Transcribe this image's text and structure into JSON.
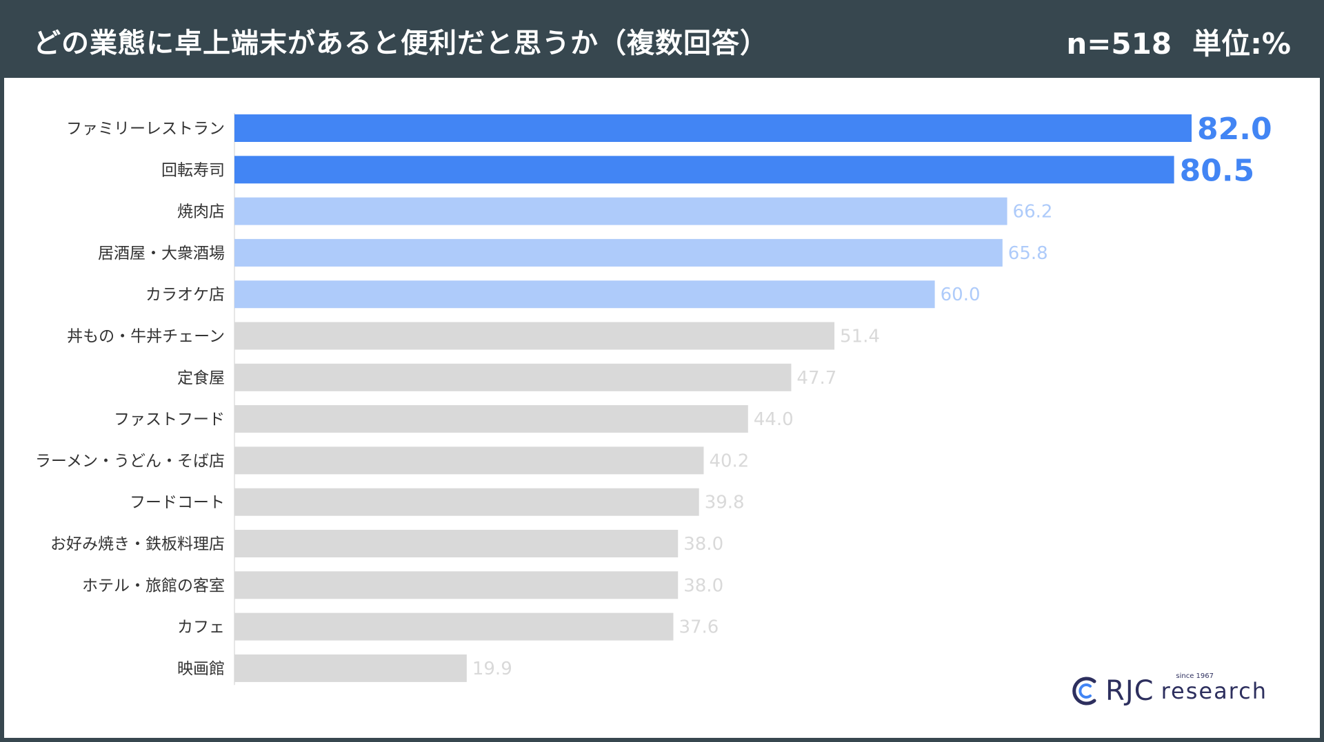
{
  "header": {
    "title": "どの業態に卓上端末があると便利だと思うか（複数回答）",
    "sample": "n=518",
    "unit": "単位:%"
  },
  "colors": {
    "header_bg": "#37474f",
    "highlight": "#4285f4",
    "secondary": "#aecbfa",
    "other": "#d9d9d9"
  },
  "chart_data": {
    "type": "bar",
    "orientation": "horizontal",
    "categories": [
      "ファミリーレストラン",
      "回転寿司",
      "焼肉店",
      "居酒屋・大衆酒場",
      "カラオケ店",
      "丼もの・牛丼チェーン",
      "定食屋",
      "ファストフード",
      "ラーメン・うどん・そば店",
      "フードコート",
      "お好み焼き・鉄板料理店",
      "ホテル・旅館の客室",
      "カフェ",
      "映画館"
    ],
    "values": [
      82.0,
      80.5,
      66.2,
      65.8,
      60.0,
      51.4,
      47.7,
      44.0,
      40.2,
      39.8,
      38.0,
      38.0,
      37.6,
      19.9
    ],
    "value_labels": [
      "82.0",
      "80.5",
      "66.2",
      "65.8",
      "60.0",
      "51.4",
      "47.7",
      "44.0",
      "40.2",
      "39.8",
      "38.0",
      "38.0",
      "37.6",
      "19.9"
    ],
    "tiers": [
      "top",
      "top",
      "second",
      "second",
      "second",
      "other",
      "other",
      "other",
      "other",
      "other",
      "other",
      "other",
      "other",
      "other"
    ],
    "xlim": [
      0,
      100
    ],
    "grid": false,
    "legend": "none"
  },
  "logo": {
    "brand": "RJC",
    "name": "research",
    "since": "since 1967"
  }
}
